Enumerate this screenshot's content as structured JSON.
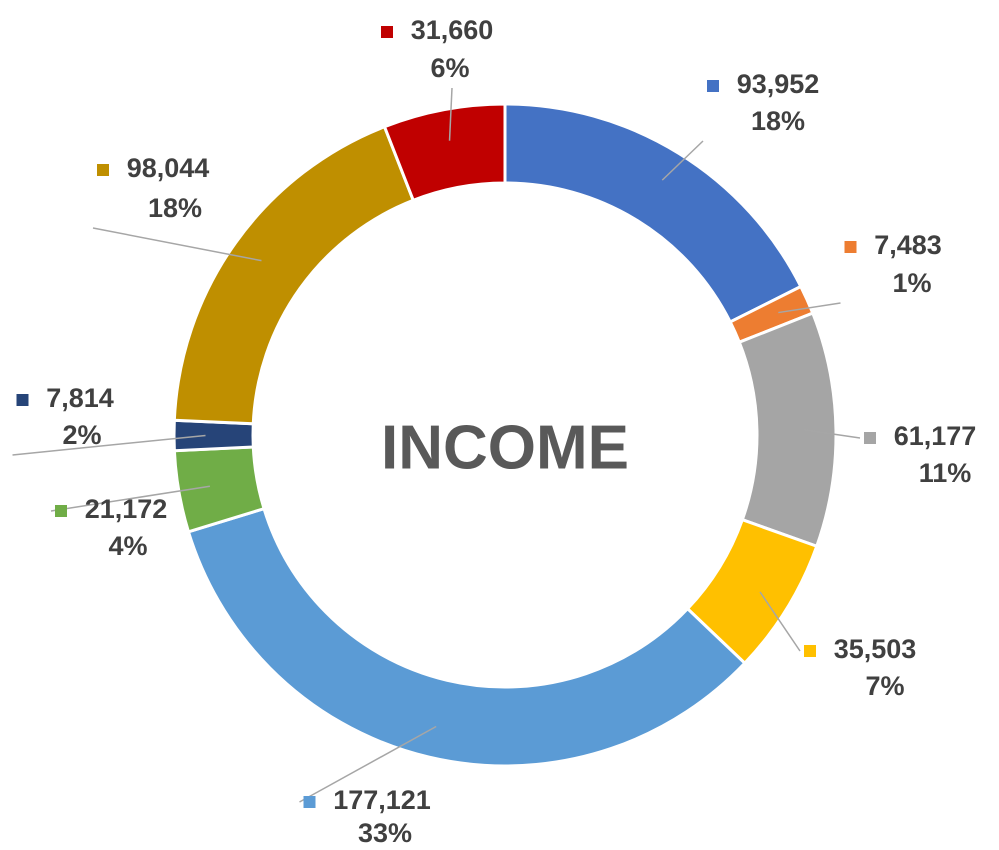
{
  "chart_data": {
    "type": "donut",
    "title": "INCOME",
    "values": [
      93952,
      7483,
      61177,
      35503,
      177121,
      21172,
      7814,
      98044,
      31660
    ],
    "value_labels": [
      "93,952",
      "7,483",
      "61,177",
      "35,503",
      "177,121",
      "21,172",
      "7,814",
      "98,044",
      "31,660"
    ],
    "percent_labels": [
      "18%",
      "1%",
      "11%",
      "7%",
      "33%",
      "4%",
      "2%",
      "18%",
      "6%"
    ],
    "colors": [
      "#4472c4",
      "#ed7d31",
      "#a5a5a5",
      "#ffc000",
      "#5b9bd5",
      "#70ad47",
      "#264478",
      "#bf8f00",
      "#c00000"
    ]
  }
}
